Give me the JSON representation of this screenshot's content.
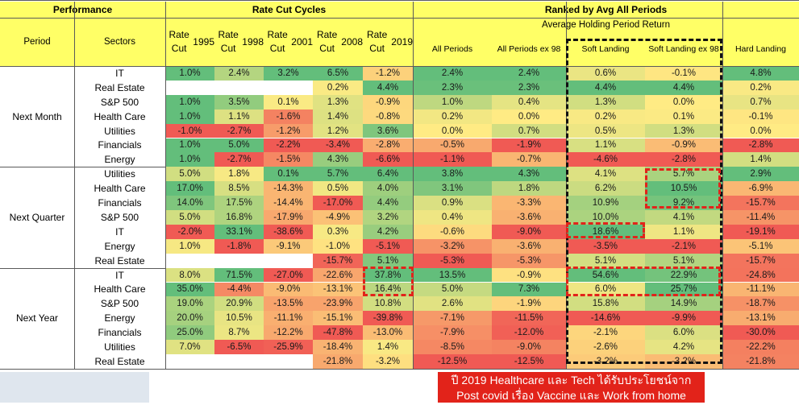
{
  "headers": {
    "performance": "Performance",
    "rate_cut_cycles": "Rate Cut Cycles",
    "ranked": "Ranked by Avg All Periods",
    "avg_holding": "Average Holding Period Return",
    "period": "Period",
    "sectors": "Sectors",
    "cols": [
      "Rate Cut\n1995",
      "Rate Cut\n1998",
      "Rate Cut\n2001",
      "Rate Cut\n2008",
      "Rate Cut\n2019",
      "All Periods",
      "All Periods ex 98",
      "Soft Landing",
      "Soft Landing ex 98",
      "Hard Landing"
    ]
  },
  "note": {
    "line1": "ปี 2019 Healthcare และ Tech ได้รับประโยชน์จาก",
    "line2": "Post covid เรื่อง Vaccine และ Work from home"
  },
  "chart_data": {
    "type": "table",
    "columns": [
      "Rate Cut 1995",
      "Rate Cut 1998",
      "Rate Cut 2001",
      "Rate Cut 2008",
      "Rate Cut 2019",
      "All Periods",
      "All Periods ex 98",
      "Soft Landing",
      "Soft Landing ex 98",
      "Hard Landing"
    ],
    "groups": [
      {
        "period": "Next Month",
        "rows": [
          {
            "sector": "IT",
            "values": [
              "1.0%",
              "2.4%",
              "3.2%",
              "6.5%",
              "-1.2%",
              "2.4%",
              "2.4%",
              "0.6%",
              "-0.1%",
              "4.8%"
            ]
          },
          {
            "sector": "Real Estate",
            "values": [
              "",
              "",
              "",
              "0.2%",
              "4.4%",
              "2.3%",
              "2.3%",
              "4.4%",
              "4.4%",
              "0.2%"
            ]
          },
          {
            "sector": "S&P 500",
            "values": [
              "1.0%",
              "3.5%",
              "0.1%",
              "1.3%",
              "-0.9%",
              "1.0%",
              "0.4%",
              "1.3%",
              "0.0%",
              "0.7%"
            ]
          },
          {
            "sector": "Health Care",
            "values": [
              "1.0%",
              "1.1%",
              "-1.6%",
              "1.4%",
              "-0.8%",
              "0.2%",
              "0.0%",
              "0.2%",
              "0.1%",
              "-0.1%"
            ]
          },
          {
            "sector": "Utilities",
            "values": [
              "-1.0%",
              "-2.7%",
              "-1.2%",
              "1.2%",
              "3.6%",
              "0.0%",
              "0.7%",
              "0.5%",
              "1.3%",
              "0.0%"
            ]
          },
          {
            "sector": "Financials",
            "values": [
              "1.0%",
              "5.0%",
              "-2.2%",
              "-3.4%",
              "-2.8%",
              "-0.5%",
              "-1.9%",
              "1.1%",
              "-0.9%",
              "-2.8%"
            ]
          },
          {
            "sector": "Energy",
            "values": [
              "1.0%",
              "-2.7%",
              "-1.5%",
              "4.3%",
              "-6.6%",
              "-1.1%",
              "-0.7%",
              "-4.6%",
              "-2.8%",
              "1.4%"
            ]
          }
        ]
      },
      {
        "period": "Next Quarter",
        "rows": [
          {
            "sector": "Utilities",
            "values": [
              "5.0%",
              "1.8%",
              "0.1%",
              "5.7%",
              "6.4%",
              "3.8%",
              "4.3%",
              "4.1%",
              "5.7%",
              "2.9%"
            ]
          },
          {
            "sector": "Health Care",
            "values": [
              "17.0%",
              "8.5%",
              "-14.3%",
              "0.5%",
              "4.0%",
              "3.1%",
              "1.8%",
              "6.2%",
              "10.5%",
              "-6.9%"
            ]
          },
          {
            "sector": "Financials",
            "values": [
              "14.0%",
              "17.5%",
              "-14.4%",
              "-17.0%",
              "4.4%",
              "0.9%",
              "-3.3%",
              "10.9%",
              "9.2%",
              "-15.7%"
            ]
          },
          {
            "sector": "S&P 500",
            "values": [
              "5.0%",
              "16.8%",
              "-17.9%",
              "-4.9%",
              "3.2%",
              "0.4%",
              "-3.6%",
              "10.0%",
              "4.1%",
              "-11.4%"
            ]
          },
          {
            "sector": "IT",
            "values": [
              "-2.0%",
              "33.1%",
              "-38.6%",
              "0.3%",
              "4.2%",
              "-0.6%",
              "-9.0%",
              "18.6%",
              "1.1%",
              "-19.1%"
            ]
          },
          {
            "sector": "Energy",
            "values": [
              "1.0%",
              "-1.8%",
              "-9.1%",
              "-1.0%",
              "-5.1%",
              "-3.2%",
              "-3.6%",
              "-3.5%",
              "-2.1%",
              "-5.1%"
            ]
          },
          {
            "sector": "Real Estate",
            "values": [
              "",
              "",
              "",
              "-15.7%",
              "5.1%",
              "-5.3%",
              "-5.3%",
              "5.1%",
              "5.1%",
              "-15.7%"
            ]
          }
        ]
      },
      {
        "period": "Next Year",
        "rows": [
          {
            "sector": "IT",
            "values": [
              "8.0%",
              "71.5%",
              "-27.0%",
              "-22.6%",
              "37.8%",
              "13.5%",
              "-0.9%",
              "54.6%",
              "22.9%",
              "-24.8%"
            ]
          },
          {
            "sector": "Health Care",
            "values": [
              "35.0%",
              "-4.4%",
              "-9.0%",
              "-13.1%",
              "16.4%",
              "5.0%",
              "7.3%",
              "6.0%",
              "25.7%",
              "-11.1%"
            ]
          },
          {
            "sector": "S&P 500",
            "values": [
              "19.0%",
              "20.9%",
              "-13.5%",
              "-23.9%",
              "10.8%",
              "2.6%",
              "-1.9%",
              "15.8%",
              "14.9%",
              "-18.7%"
            ]
          },
          {
            "sector": "Energy",
            "values": [
              "20.0%",
              "10.5%",
              "-11.1%",
              "-15.1%",
              "-39.8%",
              "-7.1%",
              "-11.5%",
              "-14.6%",
              "-9.9%",
              "-13.1%"
            ]
          },
          {
            "sector": "Financials",
            "values": [
              "25.0%",
              "8.7%",
              "-12.2%",
              "-47.8%",
              "-13.0%",
              "-7.9%",
              "-12.0%",
              "-2.1%",
              "6.0%",
              "-30.0%"
            ]
          },
          {
            "sector": "Utilities",
            "values": [
              "7.0%",
              "-6.5%",
              "-25.9%",
              "-18.4%",
              "1.4%",
              "-8.5%",
              "-9.0%",
              "-2.6%",
              "4.2%",
              "-22.2%"
            ]
          },
          {
            "sector": "Real Estate",
            "values": [
              "",
              "",
              "",
              "-21.8%",
              "-3.2%",
              "-12.5%",
              "-12.5%",
              "-3.2%",
              "-3.2%",
              "-21.8%"
            ]
          }
        ]
      }
    ]
  }
}
